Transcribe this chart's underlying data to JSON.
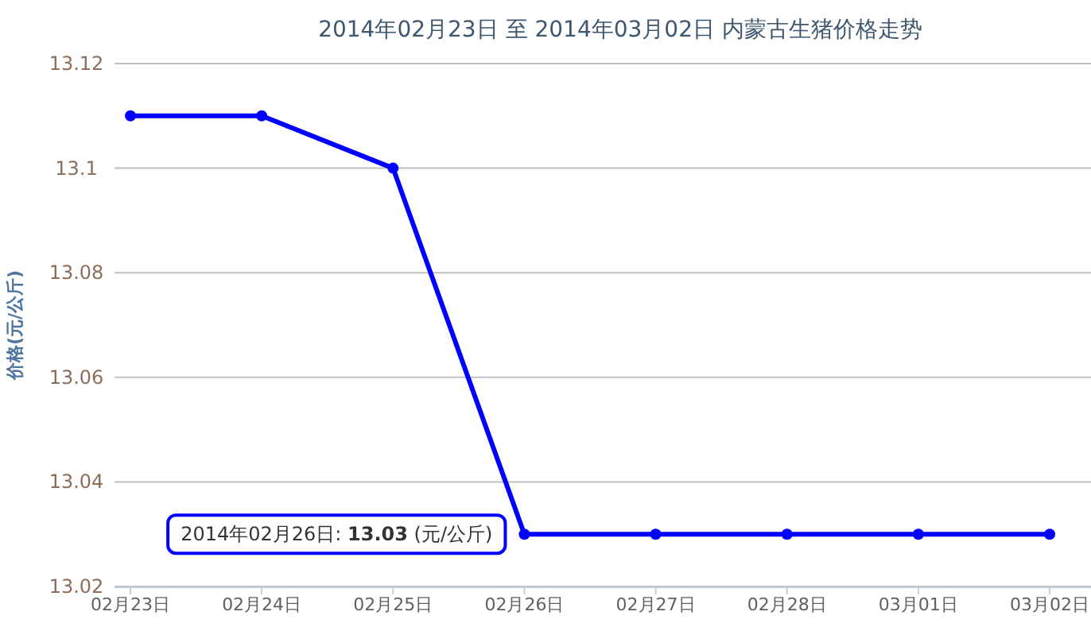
{
  "chart_data": {
    "type": "line",
    "title": "2014年02月23日 至 2014年03月02日 内蒙古生猪价格走势",
    "ylabel": "价格(元/公斤)",
    "categories": [
      "02月23日",
      "02月24日",
      "02月25日",
      "02月26日",
      "02月27日",
      "02月28日",
      "03月01日",
      "03月02日"
    ],
    "series": [
      {
        "color": "#0000ff",
        "values": [
          13.11,
          13.11,
          13.1,
          13.03,
          13.03,
          13.03,
          13.03,
          13.03
        ]
      }
    ],
    "ylim": [
      13.02,
      13.12
    ],
    "yticks": [
      13.02,
      13.04,
      13.06,
      13.08,
      13.1,
      13.12
    ],
    "grid": "y",
    "marker": "circle",
    "line_style": "solid",
    "annotations": [
      {
        "text": "2014年02月26日: **13.03** (元/公斤)",
        "x": "02月26日",
        "y": 13.03
      }
    ]
  }
}
